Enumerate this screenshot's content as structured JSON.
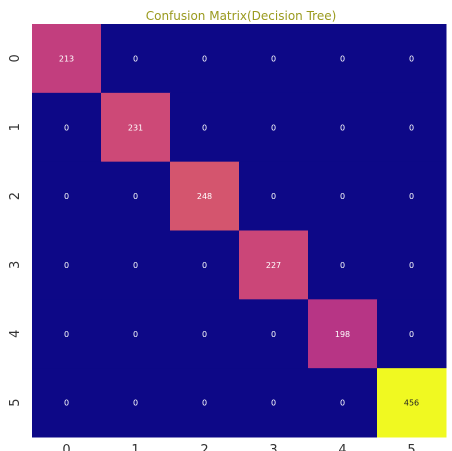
{
  "chart_data": {
    "type": "heatmap",
    "title": "Confusion Matrix(Decision Tree)",
    "x_categories": [
      "0",
      "1",
      "2",
      "3",
      "4",
      "5"
    ],
    "y_categories": [
      "0",
      "1",
      "2",
      "3",
      "4",
      "5"
    ],
    "values": [
      [
        213,
        0,
        0,
        0,
        0,
        0
      ],
      [
        0,
        231,
        0,
        0,
        0,
        0
      ],
      [
        0,
        0,
        248,
        0,
        0,
        0
      ],
      [
        0,
        0,
        0,
        227,
        0,
        0
      ],
      [
        0,
        0,
        0,
        0,
        198,
        0
      ],
      [
        0,
        0,
        0,
        0,
        0,
        456
      ]
    ],
    "colormap": "plasma",
    "vmin": 0,
    "vmax": 456,
    "xlabel": "",
    "ylabel": "",
    "colors": {
      "low": "#0d0887",
      "high": "#f0f921",
      "title": "#9a9a1e"
    }
  }
}
